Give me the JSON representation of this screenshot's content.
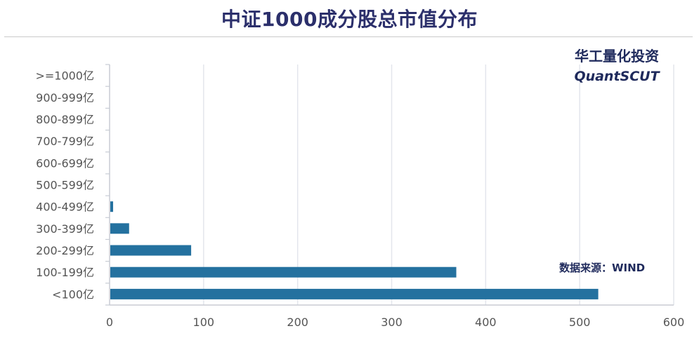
{
  "chart_data": {
    "type": "bar",
    "orientation": "horizontal",
    "title": "中证1000成分股总市值分布",
    "categories": [
      ">=1000亿",
      "900-999亿",
      "800-899亿",
      "700-799亿",
      "600-699亿",
      "500-599亿",
      "400-499亿",
      "300-399亿",
      "200-299亿",
      "100-199亿",
      "<100亿"
    ],
    "values": [
      0,
      0,
      0,
      0,
      0,
      0,
      3,
      20,
      86,
      368,
      519
    ],
    "xlim": [
      0,
      600
    ],
    "xticks": [
      0,
      100,
      200,
      300,
      400,
      500,
      600
    ],
    "grid": "vertical",
    "bar_color": "#24719f"
  },
  "watermark": {
    "cn": "华工量化投资",
    "en": "QuantSCUT"
  },
  "source_note": "数据来源：WIND"
}
